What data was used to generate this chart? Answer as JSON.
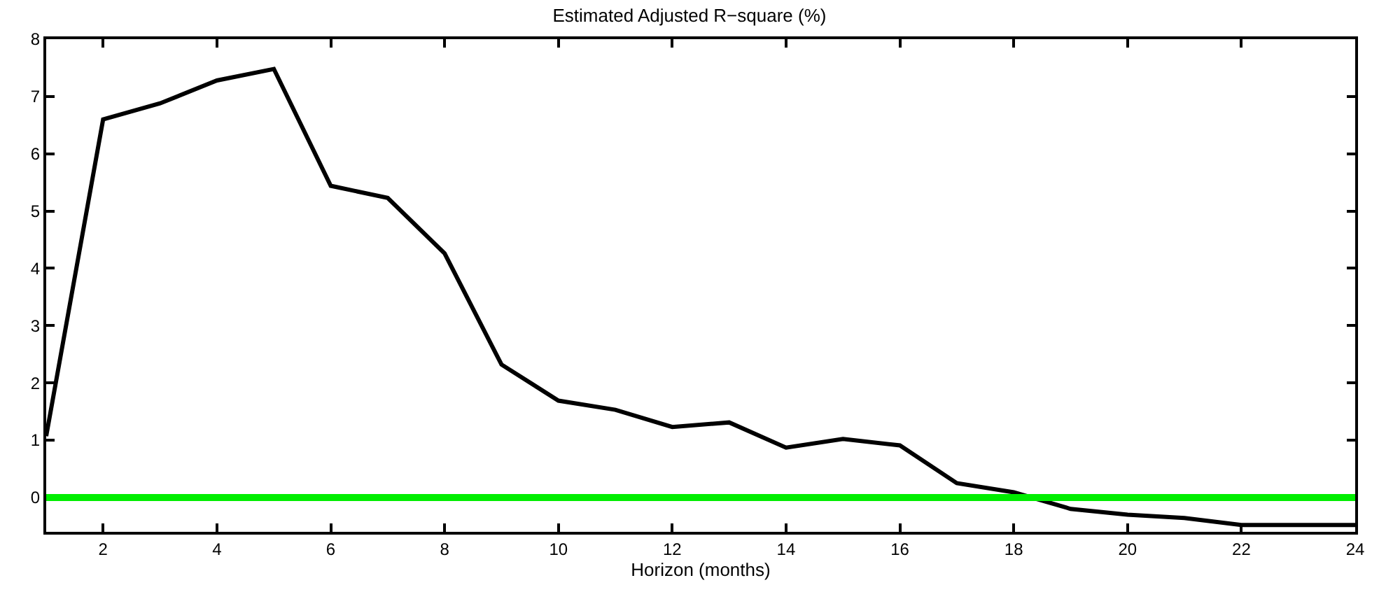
{
  "chart_data": {
    "type": "line",
    "title": "Estimated Adjusted R−square (%)",
    "xlabel": "Horizon (months)",
    "x": [
      1,
      2,
      3,
      4,
      5,
      6,
      7,
      8,
      9,
      10,
      11,
      12,
      13,
      14,
      15,
      16,
      17,
      18,
      19,
      20,
      21,
      22,
      23,
      24
    ],
    "series": [
      {
        "color": "#000000",
        "values": [
          1.07,
          6.6,
          6.88,
          7.28,
          7.48,
          5.44,
          5.23,
          4.26,
          2.32,
          1.69,
          1.53,
          1.23,
          1.31,
          0.87,
          1.02,
          0.91,
          0.25,
          0.09,
          -0.2,
          -0.3,
          -0.36,
          -0.48,
          -0.48,
          -0.48
        ]
      }
    ],
    "xlim": [
      1,
      24
    ],
    "xticks": [
      2,
      4,
      6,
      8,
      10,
      12,
      14,
      16,
      18,
      20,
      22,
      24
    ],
    "ylim": [
      -0.6,
      8
    ],
    "yticks": [
      0,
      1,
      2,
      3,
      4,
      5,
      6,
      7,
      8
    ],
    "ref_lines": [
      {
        "axis": "y",
        "value": 0,
        "color": "#00ee00"
      }
    ],
    "marker": "none",
    "line_style": "solid"
  }
}
